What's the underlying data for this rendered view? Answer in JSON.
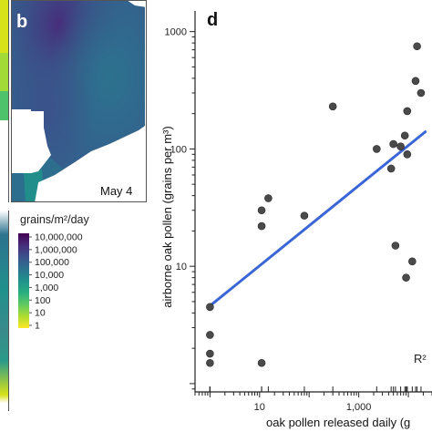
{
  "colors": {
    "viridis": [
      "#440154",
      "#472d7b",
      "#3b528b",
      "#2c728e",
      "#21918c",
      "#28ae80",
      "#5ec962",
      "#addc30",
      "#fde725"
    ],
    "point_fill": "#4a4a4a",
    "fit_line": "#3a66d6"
  },
  "panel_b": {
    "letter": "b",
    "date": "May 4"
  },
  "colorbar": {
    "title": "grains/m²/day",
    "labels": [
      "10,000,000",
      "1,000,000",
      "100,000",
      "10,000",
      "1,000",
      "100",
      "10",
      "1"
    ]
  },
  "panel_d": {
    "letter": "d",
    "r2_label": "R²",
    "xlabel": "oak pollen released daily (g",
    "ylabel": "airborne oak pollen (grains per m³)"
  },
  "chart_data": {
    "type": "scatter",
    "x_scale": "log",
    "y_scale": "log",
    "xlim": [
      0.5,
      30000
    ],
    "ylim": [
      0.85,
      1500
    ],
    "xticks": [
      {
        "v": 10,
        "label": "10"
      },
      {
        "v": 1000,
        "label": "1,000"
      }
    ],
    "yticks": [
      {
        "v": 10,
        "label": "10"
      },
      {
        "v": 100,
        "label": "100"
      },
      {
        "v": 1000,
        "label": "1000"
      }
    ],
    "x": [
      1,
      1,
      1,
      1,
      11,
      11,
      11,
      15,
      80,
      300,
      2300,
      4500,
      5000,
      5500,
      7000,
      8500,
      9500,
      12000,
      14000,
      15000,
      18000,
      9000,
      9500
    ],
    "y": [
      1.5,
      1.8,
      2.6,
      4.5,
      1.5,
      22,
      30,
      38,
      27,
      230,
      100,
      68,
      110,
      15,
      105,
      130,
      210,
      11,
      380,
      750,
      300,
      8,
      90
    ],
    "fit": {
      "x": [
        1,
        22000
      ],
      "y": [
        4.6,
        140
      ]
    }
  }
}
